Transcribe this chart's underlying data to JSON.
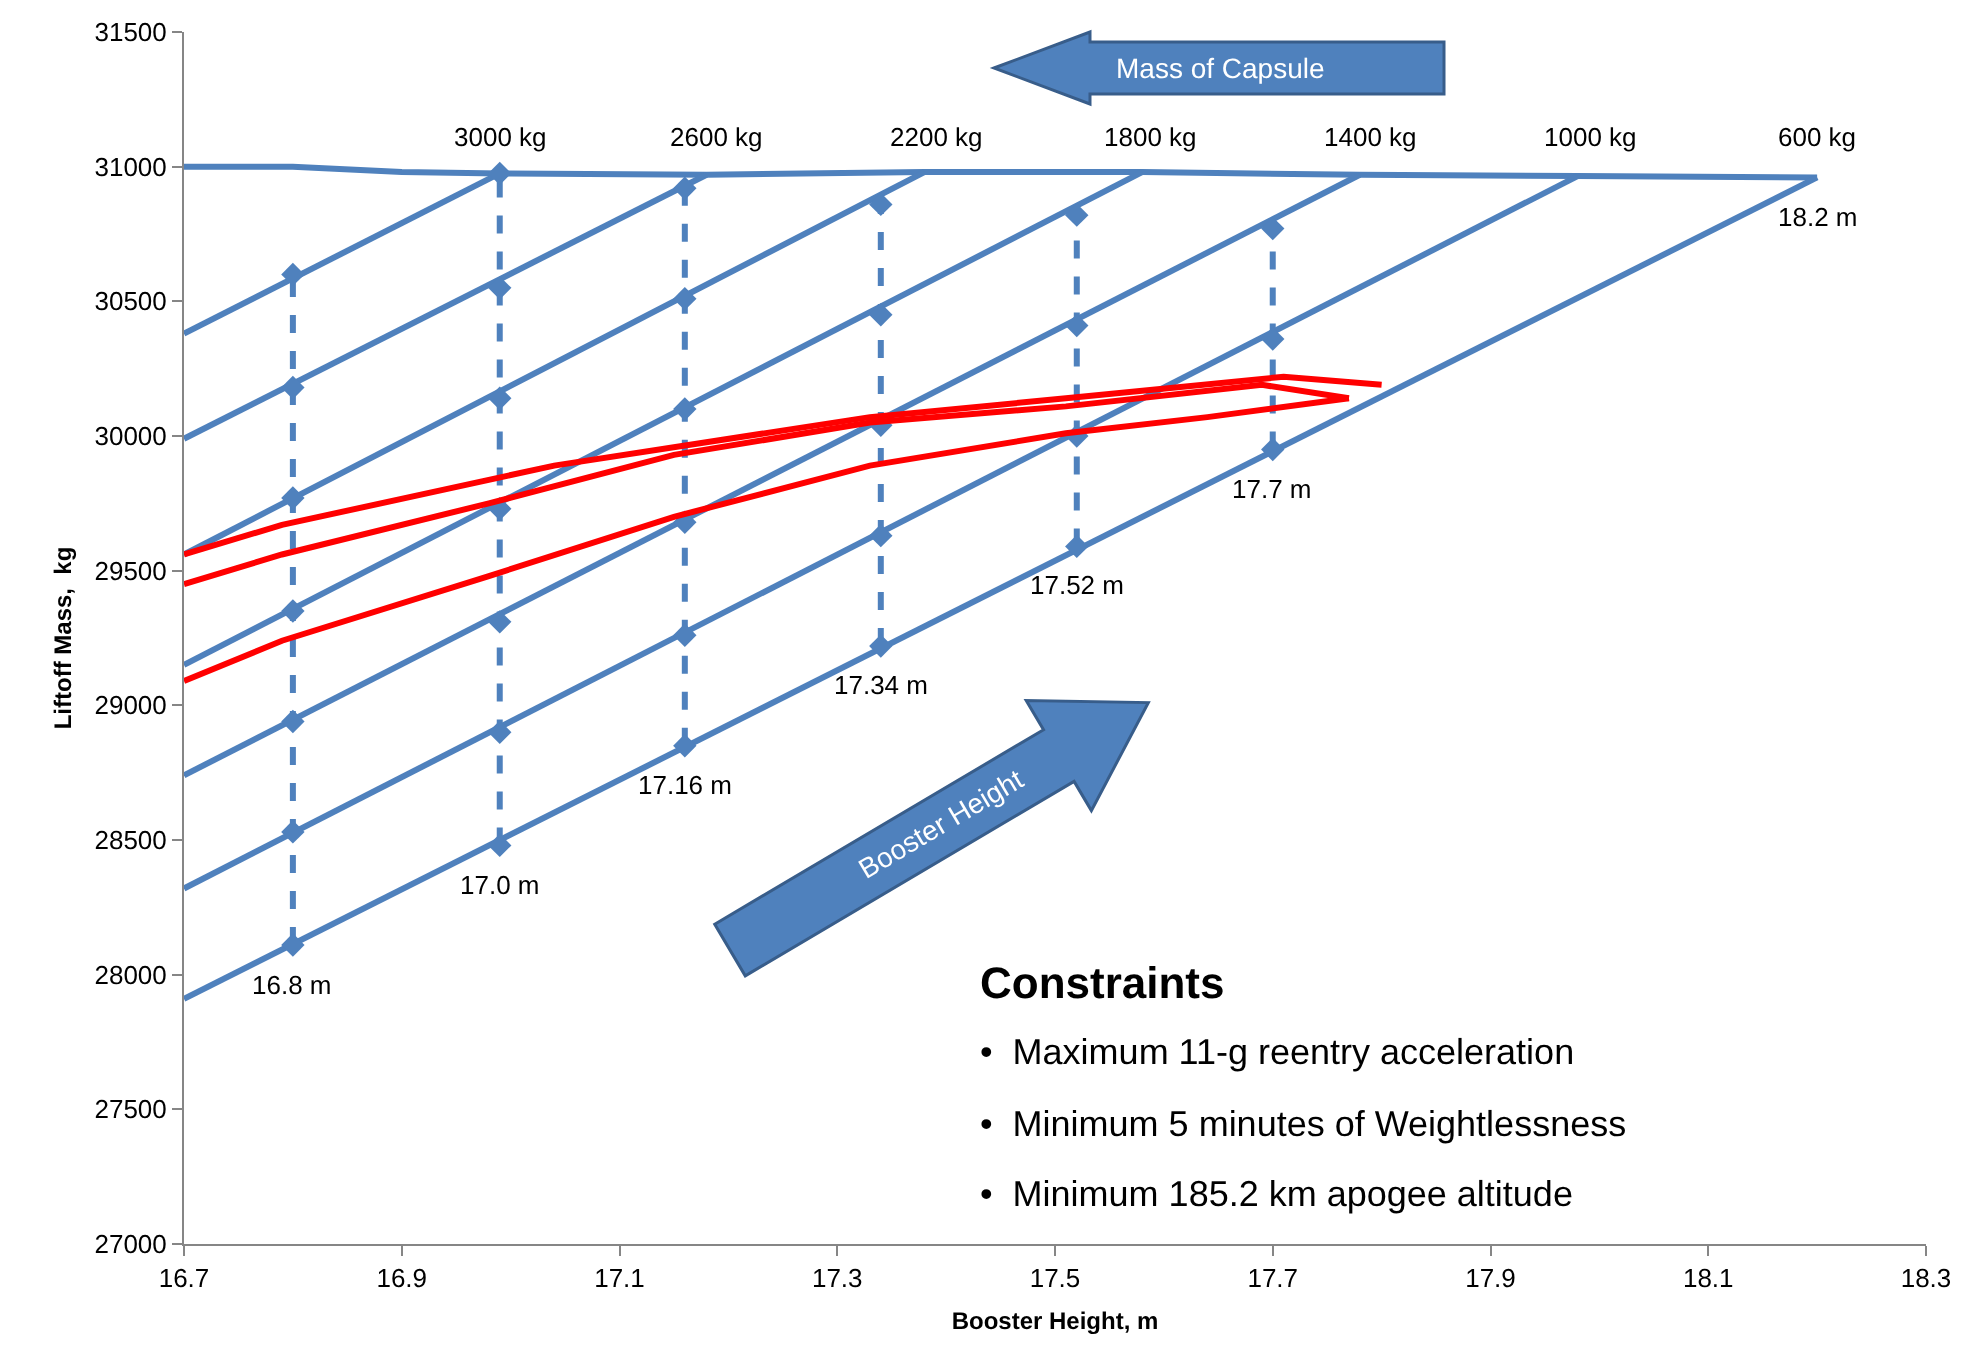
{
  "chart_data": {
    "type": "line",
    "xlabel": "Booster Height, m",
    "ylabel": "Liftoff Mass,  kg",
    "xlim": [
      16.7,
      18.3
    ],
    "xticks": [
      16.7,
      16.9,
      17.1,
      17.3,
      17.5,
      17.7,
      17.9,
      18.1,
      18.3
    ],
    "ylim": [
      27000,
      31500
    ],
    "yticks": [
      27000,
      27500,
      28000,
      28500,
      29000,
      29500,
      30000,
      30500,
      31000,
      31500
    ],
    "series": [
      {
        "color": "#4f81bd",
        "line_style": "solid",
        "marker": "none",
        "x": [
          16.7,
          16.8,
          16.9,
          16.99,
          17.18,
          17.38,
          17.58,
          17.78,
          17.98,
          18.2
        ],
        "values": [
          31000,
          31000,
          30980,
          30975,
          30970,
          30980,
          30980,
          30970,
          30965,
          30960
        ]
      },
      {
        "color": "#4f81bd",
        "line_style": "solid",
        "marker": "none",
        "x": [
          16.7,
          16.99
        ],
        "values": [
          30380,
          30975
        ]
      },
      {
        "color": "#4f81bd",
        "line_style": "solid",
        "marker": "none",
        "x": [
          16.7,
          17.18
        ],
        "values": [
          29990,
          30970
        ]
      },
      {
        "color": "#4f81bd",
        "line_style": "solid",
        "marker": "none",
        "x": [
          16.7,
          17.38
        ],
        "values": [
          29560,
          30980
        ]
      },
      {
        "color": "#4f81bd",
        "line_style": "solid",
        "marker": "none",
        "x": [
          16.7,
          17.58
        ],
        "values": [
          29150,
          30980
        ]
      },
      {
        "color": "#4f81bd",
        "line_style": "solid",
        "marker": "none",
        "x": [
          16.7,
          17.78
        ],
        "values": [
          28740,
          30970
        ]
      },
      {
        "color": "#4f81bd",
        "line_style": "solid",
        "marker": "none",
        "x": [
          16.7,
          17.98
        ],
        "values": [
          28320,
          30965
        ]
      },
      {
        "color": "#4f81bd",
        "line_style": "solid",
        "marker": "none",
        "x": [
          16.7,
          18.2
        ],
        "values": [
          27910,
          30960
        ]
      },
      {
        "color": "#4f81bd",
        "line_style": "dashed",
        "marker": "diamond",
        "x": [
          16.8,
          16.8,
          16.8,
          16.8,
          16.8,
          16.8,
          16.8
        ],
        "values": [
          28110,
          28530,
          28940,
          29350,
          29770,
          30180,
          30600
        ]
      },
      {
        "color": "#4f81bd",
        "line_style": "dashed",
        "marker": "diamond",
        "x": [
          16.99,
          16.99,
          16.99,
          16.99,
          16.99,
          16.99,
          16.99
        ],
        "values": [
          28480,
          28900,
          29310,
          29730,
          30140,
          30550,
          30975
        ]
      },
      {
        "color": "#4f81bd",
        "line_style": "dashed",
        "marker": "diamond",
        "x": [
          17.16,
          17.16,
          17.16,
          17.16,
          17.16,
          17.16
        ],
        "values": [
          28850,
          29260,
          29680,
          30100,
          30510,
          30920
        ]
      },
      {
        "color": "#4f81bd",
        "line_style": "dashed",
        "marker": "diamond",
        "x": [
          17.34,
          17.34,
          17.34,
          17.34,
          17.34
        ],
        "values": [
          29220,
          29630,
          30040,
          30450,
          30860
        ]
      },
      {
        "color": "#4f81bd",
        "line_style": "dashed",
        "marker": "diamond",
        "x": [
          17.52,
          17.52,
          17.52,
          17.52
        ],
        "values": [
          29590,
          30000,
          30410,
          30820
        ]
      },
      {
        "color": "#4f81bd",
        "line_style": "dashed",
        "marker": "diamond",
        "x": [
          17.7,
          17.7,
          17.7
        ],
        "values": [
          29950,
          30360,
          30770
        ]
      },
      {
        "color": "#ff0000",
        "line_style": "solid",
        "marker": "none",
        "x": [
          16.7,
          16.79,
          17.04,
          17.33,
          17.51,
          17.71,
          17.8
        ],
        "values": [
          29560,
          29670,
          29890,
          30070,
          30140,
          30220,
          30190
        ]
      },
      {
        "color": "#ff0000",
        "line_style": "solid",
        "marker": "none",
        "x": [
          16.7,
          16.79,
          16.98,
          17.15,
          17.33,
          17.51,
          17.69,
          17.77
        ],
        "values": [
          29450,
          29560,
          29750,
          29930,
          30050,
          30110,
          30190,
          30140
        ]
      },
      {
        "color": "#ff0000",
        "line_style": "solid",
        "marker": "none",
        "x": [
          16.7,
          16.79,
          16.98,
          17.15,
          17.33,
          17.51,
          17.64,
          17.77
        ],
        "values": [
          29090,
          29240,
          29480,
          29700,
          29890,
          30010,
          30070,
          30140
        ]
      }
    ],
    "annotations": [
      "Mass of Capsule",
      "Booster Height",
      "Constraints",
      "•  Maximum 11-g reentry acceleration",
      "•  Minimum 5 minutes of Weightlessness",
      "•  Minimum 185.2 km apogee altitude",
      "3000 kg",
      "2600 kg",
      "2200 kg",
      "1800 kg",
      "1400 kg",
      "1000 kg",
      "600 kg",
      {
        "text": "18.2 m",
        "x": 18.2,
        "y": 30960
      },
      {
        "text": "17.7 m",
        "x": 17.7,
        "y": 29950
      },
      {
        "text": "17.52 m",
        "x": 17.52,
        "y": 29590
      },
      {
        "text": "17.34 m",
        "x": 17.34,
        "y": 29220
      },
      {
        "text": "17.16 m",
        "x": 17.16,
        "y": 28850
      },
      {
        "text": "17.0 m",
        "x": 16.99,
        "y": 28480
      },
      {
        "text": "16.8 m",
        "x": 16.8,
        "y": 28110
      }
    ]
  }
}
